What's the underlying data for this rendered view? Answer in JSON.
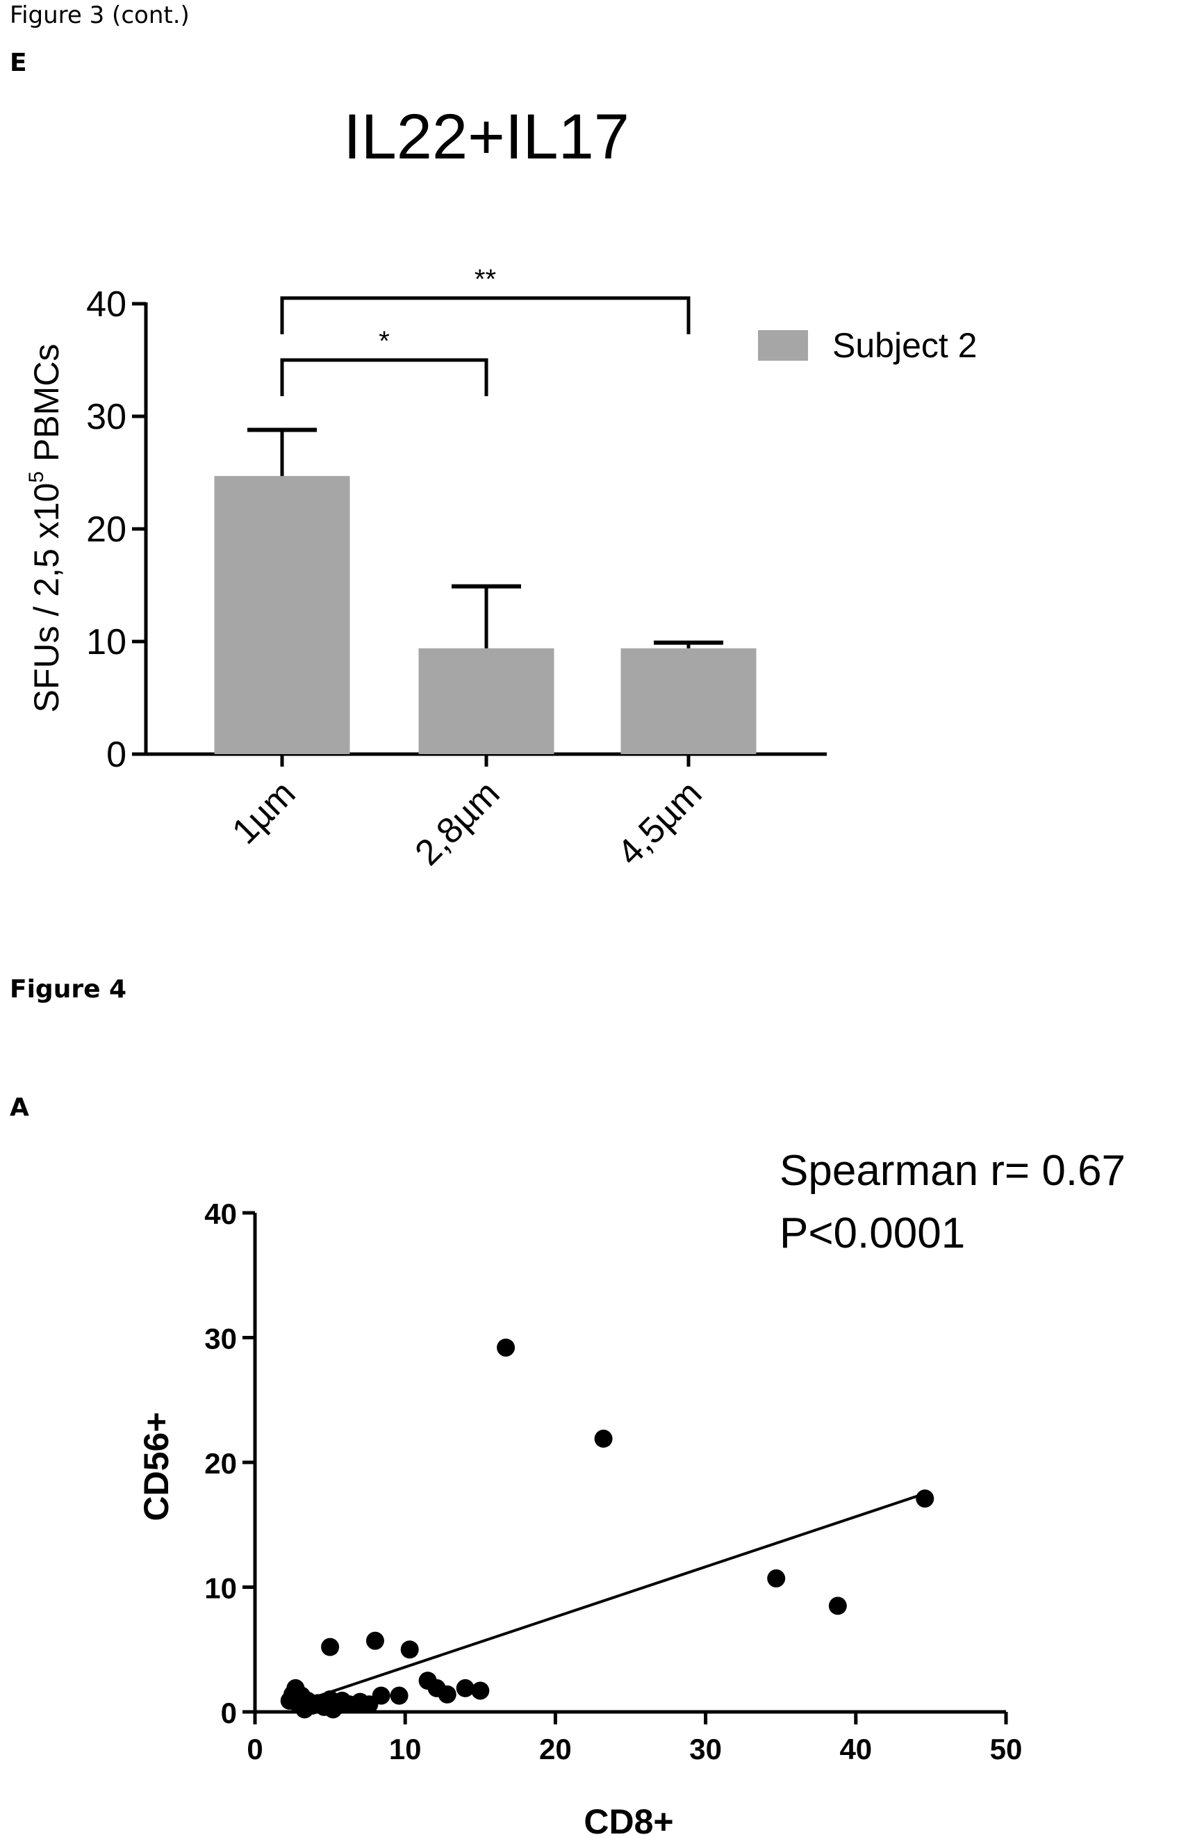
{
  "captions": {
    "figure3_cont": "Figure 3 (cont.)",
    "panel_e": "E",
    "figure4": "Figure 4",
    "panel_a": "A"
  },
  "chart_data": [
    {
      "type": "bar",
      "title": "IL22+IL17",
      "ylabel_main": "SFUs / 2,5 x10",
      "ylabel_sup": "5",
      "ylabel_tail": " PBMCs",
      "xlabel": "",
      "categories": [
        "1µm",
        "2,8µm",
        "4,5µm"
      ],
      "series": [
        {
          "name": "Subject 2",
          "values": [
            24.7,
            9.4,
            9.4
          ],
          "error_upper": [
            28.8,
            14.9,
            9.9
          ],
          "color": "#a6a6a6"
        }
      ],
      "ylim": [
        0,
        40
      ],
      "yticks": [
        0,
        10,
        20,
        30,
        40
      ],
      "legend_position": "top-right",
      "significance": [
        {
          "from": 0,
          "to": 1,
          "label": "*",
          "level": 35
        },
        {
          "from": 0,
          "to": 2,
          "label": "**",
          "level": 40.5
        }
      ]
    },
    {
      "type": "scatter",
      "xlabel": "CD8+",
      "ylabel": "CD56+",
      "xlim": [
        0,
        50
      ],
      "ylim": [
        0,
        40
      ],
      "xticks": [
        0,
        10,
        20,
        30,
        40,
        50
      ],
      "yticks": [
        0,
        10,
        20,
        30,
        40
      ],
      "annotation": [
        "Spearman r= 0.67",
        "P<0.0001"
      ],
      "points": [
        [
          2.3,
          0.9
        ],
        [
          2.5,
          1.4
        ],
        [
          2.7,
          1.9
        ],
        [
          2.9,
          0.6
        ],
        [
          3.1,
          1.3
        ],
        [
          3.3,
          0.2
        ],
        [
          3.5,
          0.9
        ],
        [
          3.8,
          0.5
        ],
        [
          4.2,
          0.7
        ],
        [
          4.6,
          0.4
        ],
        [
          5.0,
          5.2
        ],
        [
          5.0,
          1.0
        ],
        [
          5.2,
          0.2
        ],
        [
          5.5,
          0.5
        ],
        [
          5.8,
          0.9
        ],
        [
          6.3,
          0.6
        ],
        [
          7.0,
          0.8
        ],
        [
          7.6,
          0.6
        ],
        [
          8.0,
          5.7
        ],
        [
          8.4,
          1.3
        ],
        [
          9.6,
          1.3
        ],
        [
          10.3,
          5.0
        ],
        [
          11.5,
          2.5
        ],
        [
          12.1,
          1.9
        ],
        [
          12.8,
          1.4
        ],
        [
          14.0,
          1.9
        ],
        [
          15.0,
          1.7
        ],
        [
          16.7,
          29.2
        ],
        [
          23.2,
          21.9
        ],
        [
          34.7,
          10.7
        ],
        [
          38.8,
          8.5
        ],
        [
          44.6,
          17.1
        ]
      ],
      "trendline": {
        "x": [
          2.3,
          44.6
        ],
        "y": [
          0.5,
          17.5
        ]
      }
    }
  ]
}
